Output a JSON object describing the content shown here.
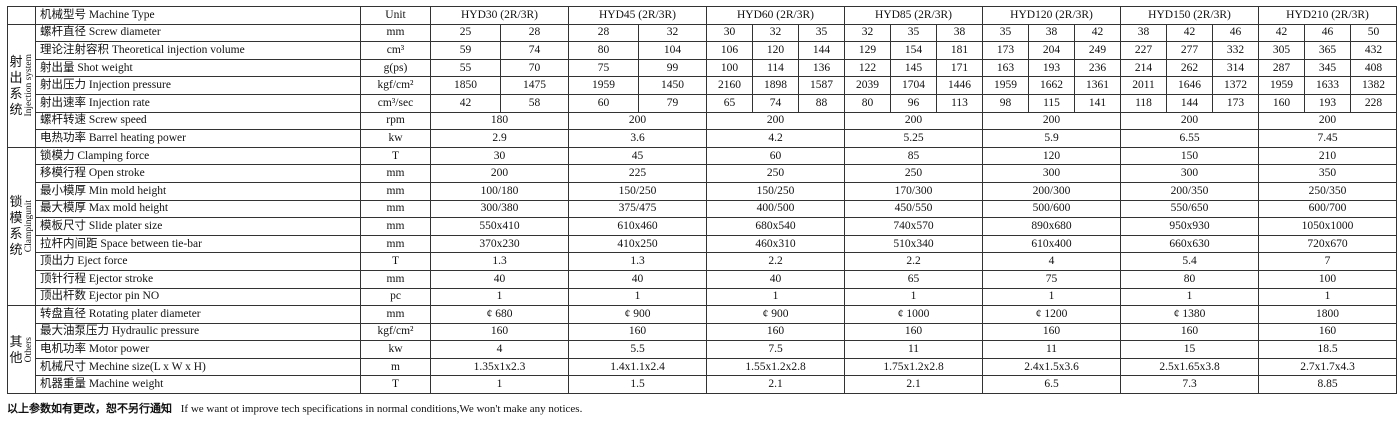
{
  "header": {
    "param": "机械型号 Machine Type",
    "unit": "Unit",
    "models": [
      "HYD30 (2R/3R)",
      "HYD45 (2R/3R)",
      "HYD60 (2R/3R)",
      "HYD85 (2R/3R)",
      "HYD120 (2R/3R)",
      "HYD150 (2R/3R)",
      "HYD210 (2R/3R)"
    ]
  },
  "sections": [
    {
      "cn": "射出系统",
      "en": "Injection system",
      "rows": [
        {
          "param": "螺杆直径  Screw diameter",
          "unit": "mm",
          "values": [
            "25",
            "28",
            "28",
            "32",
            "30",
            "32",
            "35",
            "32",
            "35",
            "38",
            "35",
            "38",
            "42",
            "38",
            "42",
            "46",
            "42",
            "46",
            "50"
          ]
        },
        {
          "param": "理论注射容积  Theoretical injection volume",
          "unit": "cm³",
          "values": [
            "59",
            "74",
            "80",
            "104",
            "106",
            "120",
            "144",
            "129",
            "154",
            "181",
            "173",
            "204",
            "249",
            "227",
            "277",
            "332",
            "305",
            "365",
            "432"
          ]
        },
        {
          "param": "射出量  Shot weight",
          "unit": "g(ps)",
          "values": [
            "55",
            "70",
            "75",
            "99",
            "100",
            "114",
            "136",
            "122",
            "145",
            "171",
            "163",
            "193",
            "236",
            "214",
            "262",
            "314",
            "287",
            "345",
            "408"
          ]
        },
        {
          "param": "射出压力  Injection pressure",
          "unit": "kgf/cm²",
          "values": [
            "1850",
            "1475",
            "1959",
            "1450",
            "2160",
            "1898",
            "1587",
            "2039",
            "1704",
            "1446",
            "1959",
            "1662",
            "1361",
            "2011",
            "1646",
            "1372",
            "1959",
            "1633",
            "1382"
          ]
        },
        {
          "param": "射出速率  Injection rate",
          "unit": "cm³/sec",
          "values": [
            "42",
            "58",
            "60",
            "79",
            "65",
            "74",
            "88",
            "80",
            "96",
            "113",
            "98",
            "115",
            "141",
            "118",
            "144",
            "173",
            "160",
            "193",
            "228"
          ]
        },
        {
          "param": "螺杆转速  Screw speed",
          "unit": "rpm",
          "values": [
            "180",
            "200",
            "200",
            "200",
            "200",
            "200",
            "200"
          ]
        },
        {
          "param": "电热功率  Barrel heating power",
          "unit": "kw",
          "values": [
            "2.9",
            "3.6",
            "4.2",
            "5.25",
            "5.9",
            "6.55",
            "7.45"
          ]
        }
      ]
    },
    {
      "cn": "锁模系统",
      "en": "Clampingunit",
      "rows": [
        {
          "param": "锁模力  Clamping force",
          "unit": "T",
          "values": [
            "30",
            "45",
            "60",
            "85",
            "120",
            "150",
            "210"
          ]
        },
        {
          "param": "移模行程  Open stroke",
          "unit": "mm",
          "values": [
            "200",
            "225",
            "250",
            "250",
            "300",
            "300",
            "350"
          ]
        },
        {
          "param": "最小模厚  Min mold height",
          "unit": "mm",
          "values": [
            "100/180",
            "150/250",
            "150/250",
            "170/300",
            "200/300",
            "200/350",
            "250/350"
          ]
        },
        {
          "param": "最大模厚  Max mold height",
          "unit": "mm",
          "values": [
            "300/380",
            "375/475",
            "400/500",
            "450/550",
            "500/600",
            "550/650",
            "600/700"
          ]
        },
        {
          "param": "模板尺寸  Slide plater size",
          "unit": "mm",
          "values": [
            "550x410",
            "610x460",
            "680x540",
            "740x570",
            "890x680",
            "950x930",
            "1050x1000"
          ]
        },
        {
          "param": "拉杆内间距  Space between tie-bar",
          "unit": "mm",
          "values": [
            "370x230",
            "410x250",
            "460x310",
            "510x340",
            "610x400",
            "660x630",
            "720x670"
          ]
        },
        {
          "param": "顶出力  Eject force",
          "unit": "T",
          "values": [
            "1.3",
            "1.3",
            "2.2",
            "2.2",
            "4",
            "5.4",
            "7"
          ]
        },
        {
          "param": "顶针行程  Ejector stroke",
          "unit": "mm",
          "values": [
            "40",
            "40",
            "40",
            "65",
            "75",
            "80",
            "100"
          ]
        },
        {
          "param": "顶出杆数  Ejector pin NO",
          "unit": "pc",
          "values": [
            "1",
            "1",
            "1",
            "1",
            "1",
            "1",
            "1"
          ]
        }
      ]
    },
    {
      "cn": "其他",
      "en": "Others",
      "rows": [
        {
          "param": "转盘直径  Rotating plater diameter",
          "unit": "mm",
          "values": [
            "¢ 680",
            "¢ 900",
            "¢ 900",
            "¢ 1000",
            "¢ 1200",
            "¢ 1380",
            "1800"
          ]
        },
        {
          "param": "最大油泵压力  Hydraulic pressure",
          "unit": "kgf/cm²",
          "values": [
            "160",
            "160",
            "160",
            "160",
            "160",
            "160",
            "160"
          ]
        },
        {
          "param": "电机功率  Motor power",
          "unit": "kw",
          "values": [
            "4",
            "5.5",
            "7.5",
            "11",
            "11",
            "15",
            "18.5"
          ]
        },
        {
          "param": "机械尺寸  Mechine size(L x W x H)",
          "unit": "m",
          "values": [
            "1.35x1x2.3",
            "1.4x1.1x2.4",
            "1.55x1.2x2.8",
            "1.75x1.2x2.8",
            "2.4x1.5x3.6",
            "2.5x1.65x3.8",
            "2.7x1.7x4.3"
          ]
        },
        {
          "param": "机器重量  Machine weight",
          "unit": "T",
          "values": [
            "1",
            "1.5",
            "2.1",
            "2.1",
            "6.5",
            "7.3",
            "8.85"
          ]
        }
      ]
    }
  ],
  "footnote": {
    "cn": "以上参数如有更改，恕不另行通知",
    "en": "If we want ot improve tech specifications in normal conditions,We won't make any notices."
  }
}
